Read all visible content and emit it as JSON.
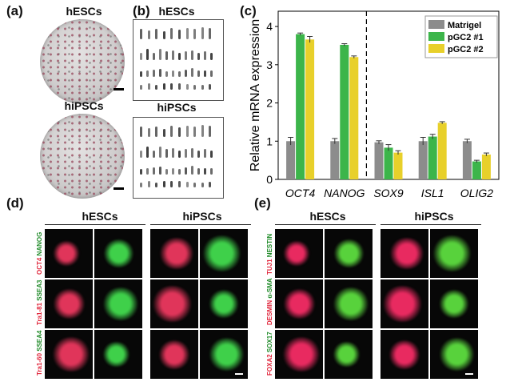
{
  "panels": {
    "a": {
      "label": "(a)",
      "top_title": "hESCs",
      "bottom_title": "hiPSCs"
    },
    "b": {
      "label": "(b)",
      "top_title": "hESCs",
      "bottom_title": "hiPSCs"
    },
    "c": {
      "label": "(c)"
    },
    "d": {
      "label": "(d)",
      "group1": "hESCs",
      "group2": "hiPSCs",
      "rows": [
        {
          "red": "OCT4",
          "green": "NANOG"
        },
        {
          "red": "Tra1-81",
          "green": "SSEA3"
        },
        {
          "red": "Tra1-60",
          "green": "SSEA4"
        }
      ]
    },
    "e": {
      "label": "(e)",
      "group1": "hESCs",
      "group2": "hiPSCs",
      "rows": [
        {
          "red": "TUJ1",
          "green": "NESTIN"
        },
        {
          "red": "DESMIN",
          "green": "α-SMA"
        },
        {
          "red": "FOXA2",
          "green": "SOX17"
        }
      ]
    }
  },
  "colors": {
    "matrigel": "#8c8c8c",
    "pgc2_1": "#3cb54a",
    "pgc2_2": "#e8d02a"
  },
  "chart_data": {
    "type": "bar",
    "categories": [
      "OCT4",
      "NANOG",
      "SOX9",
      "ISL1",
      "OLIG2"
    ],
    "series": [
      {
        "name": "Matrigel",
        "values": [
          1.0,
          1.0,
          0.97,
          1.0,
          1.0
        ],
        "errors": [
          0.1,
          0.07,
          0.04,
          0.1,
          0.05
        ]
      },
      {
        "name": "pGC2 #1",
        "values": [
          3.8,
          3.52,
          0.83,
          1.12,
          0.47
        ],
        "errors": [
          0.03,
          0.03,
          0.08,
          0.06,
          0.03
        ]
      },
      {
        "name": "pGC2 #2",
        "values": [
          3.66,
          3.2,
          0.7,
          1.48,
          0.65
        ],
        "errors": [
          0.08,
          0.03,
          0.05,
          0.03,
          0.04
        ]
      }
    ],
    "ylabel": "Relative mRNA expression",
    "ylim": [
      0,
      4.4
    ],
    "yticks": [
      "0",
      "1",
      "2",
      "3",
      "4"
    ],
    "divider_after_index": 1,
    "legend_position": "top-right"
  }
}
